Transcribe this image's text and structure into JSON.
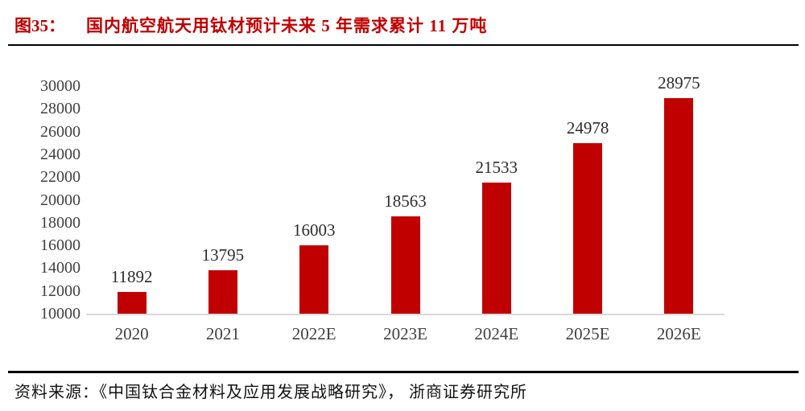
{
  "header": {
    "figure_label": "图35：",
    "title": "国内航空航天用钛材预计未来 5 年需求累计 11 万吨"
  },
  "footer": {
    "source": "资料来源：《中国钛合金材料及应用发展战略研究》， 浙商证券研究所"
  },
  "colors": {
    "bar": "#c00000",
    "title_text": "#c00000",
    "rule": "#000000",
    "axis_line": "#d9d9d9",
    "tick_label": "#404040",
    "value_label": "#2b2b2b",
    "source_text": "#111111"
  },
  "chart_data": {
    "type": "bar",
    "categories": [
      "2020",
      "2021",
      "2022E",
      "2023E",
      "2024E",
      "2025E",
      "2026E"
    ],
    "values": [
      11892,
      13795,
      16003,
      18563,
      21533,
      24978,
      28975
    ],
    "title": "国内航空航天用钛材预计未来 5 年需求累计 11 万吨",
    "xlabel": "",
    "ylabel": "",
    "ylim": [
      10000,
      30000
    ],
    "ytick_step": 2000,
    "grid": false,
    "legend": "none",
    "data_labels": true
  }
}
